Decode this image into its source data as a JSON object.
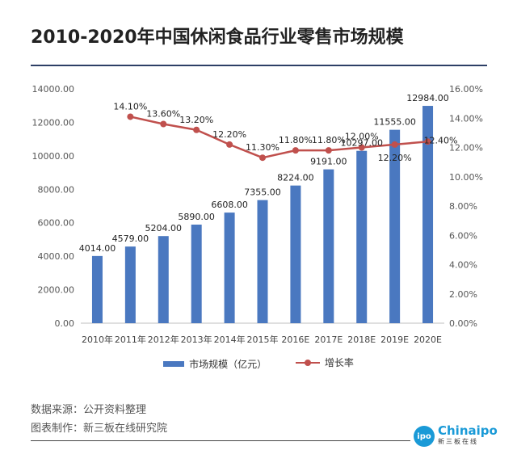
{
  "title": "2010-2020年中国休闲食品行业零售市场规模",
  "chart_data": {
    "type": "bar",
    "categories": [
      "2010年",
      "2011年",
      "2012年",
      "2013年",
      "2014年",
      "2015年",
      "2016E",
      "2017E",
      "2018E",
      "2019E",
      "2020E"
    ],
    "series": [
      {
        "name": "市场规模（亿元）",
        "type": "bar",
        "axis": "left",
        "values": [
          4014.0,
          4579.0,
          5204.0,
          5890.0,
          6608.0,
          7355.0,
          8224.0,
          9191.0,
          10297.0,
          11555.0,
          12984.0
        ],
        "labels": [
          "4014.00",
          "4579.00",
          "5204.00",
          "5890.00",
          "6608.00",
          "7355.00",
          "8224.00",
          "9191.00",
          "10297.00",
          "11555.00",
          "12984.00"
        ]
      },
      {
        "name": "增长率",
        "type": "line",
        "axis": "right",
        "values": [
          null,
          14.1,
          13.6,
          13.2,
          12.2,
          11.3,
          11.8,
          11.8,
          12.0,
          12.2,
          12.4
        ],
        "labels": [
          "",
          "14.10%",
          "13.60%",
          "13.20%",
          "12.20%",
          "11.30%",
          "11.80%",
          "11.80%",
          "12.00%",
          "12.20%",
          "12.40%"
        ]
      }
    ],
    "y_left": {
      "range": [
        0,
        14000
      ],
      "ticks": [
        "0.00",
        "2000.00",
        "4000.00",
        "6000.00",
        "8000.00",
        "10000.00",
        "12000.00",
        "14000.00"
      ]
    },
    "y_right": {
      "range": [
        0,
        16
      ],
      "ticks": [
        "0.00%",
        "2.00%",
        "4.00%",
        "6.00%",
        "8.00%",
        "10.00%",
        "12.00%",
        "14.00%",
        "16.00%"
      ]
    },
    "grid": false,
    "legend_position": "bottom",
    "colors": {
      "bar": "#4a78c0",
      "line": "#c0504d"
    }
  },
  "footer": {
    "source": "数据来源：公开资料整理",
    "producer": "图表制作：新三板在线研究院"
  },
  "logo": {
    "mark": "ipo",
    "name": "Chinaipo",
    "sub": "新三板在线"
  }
}
